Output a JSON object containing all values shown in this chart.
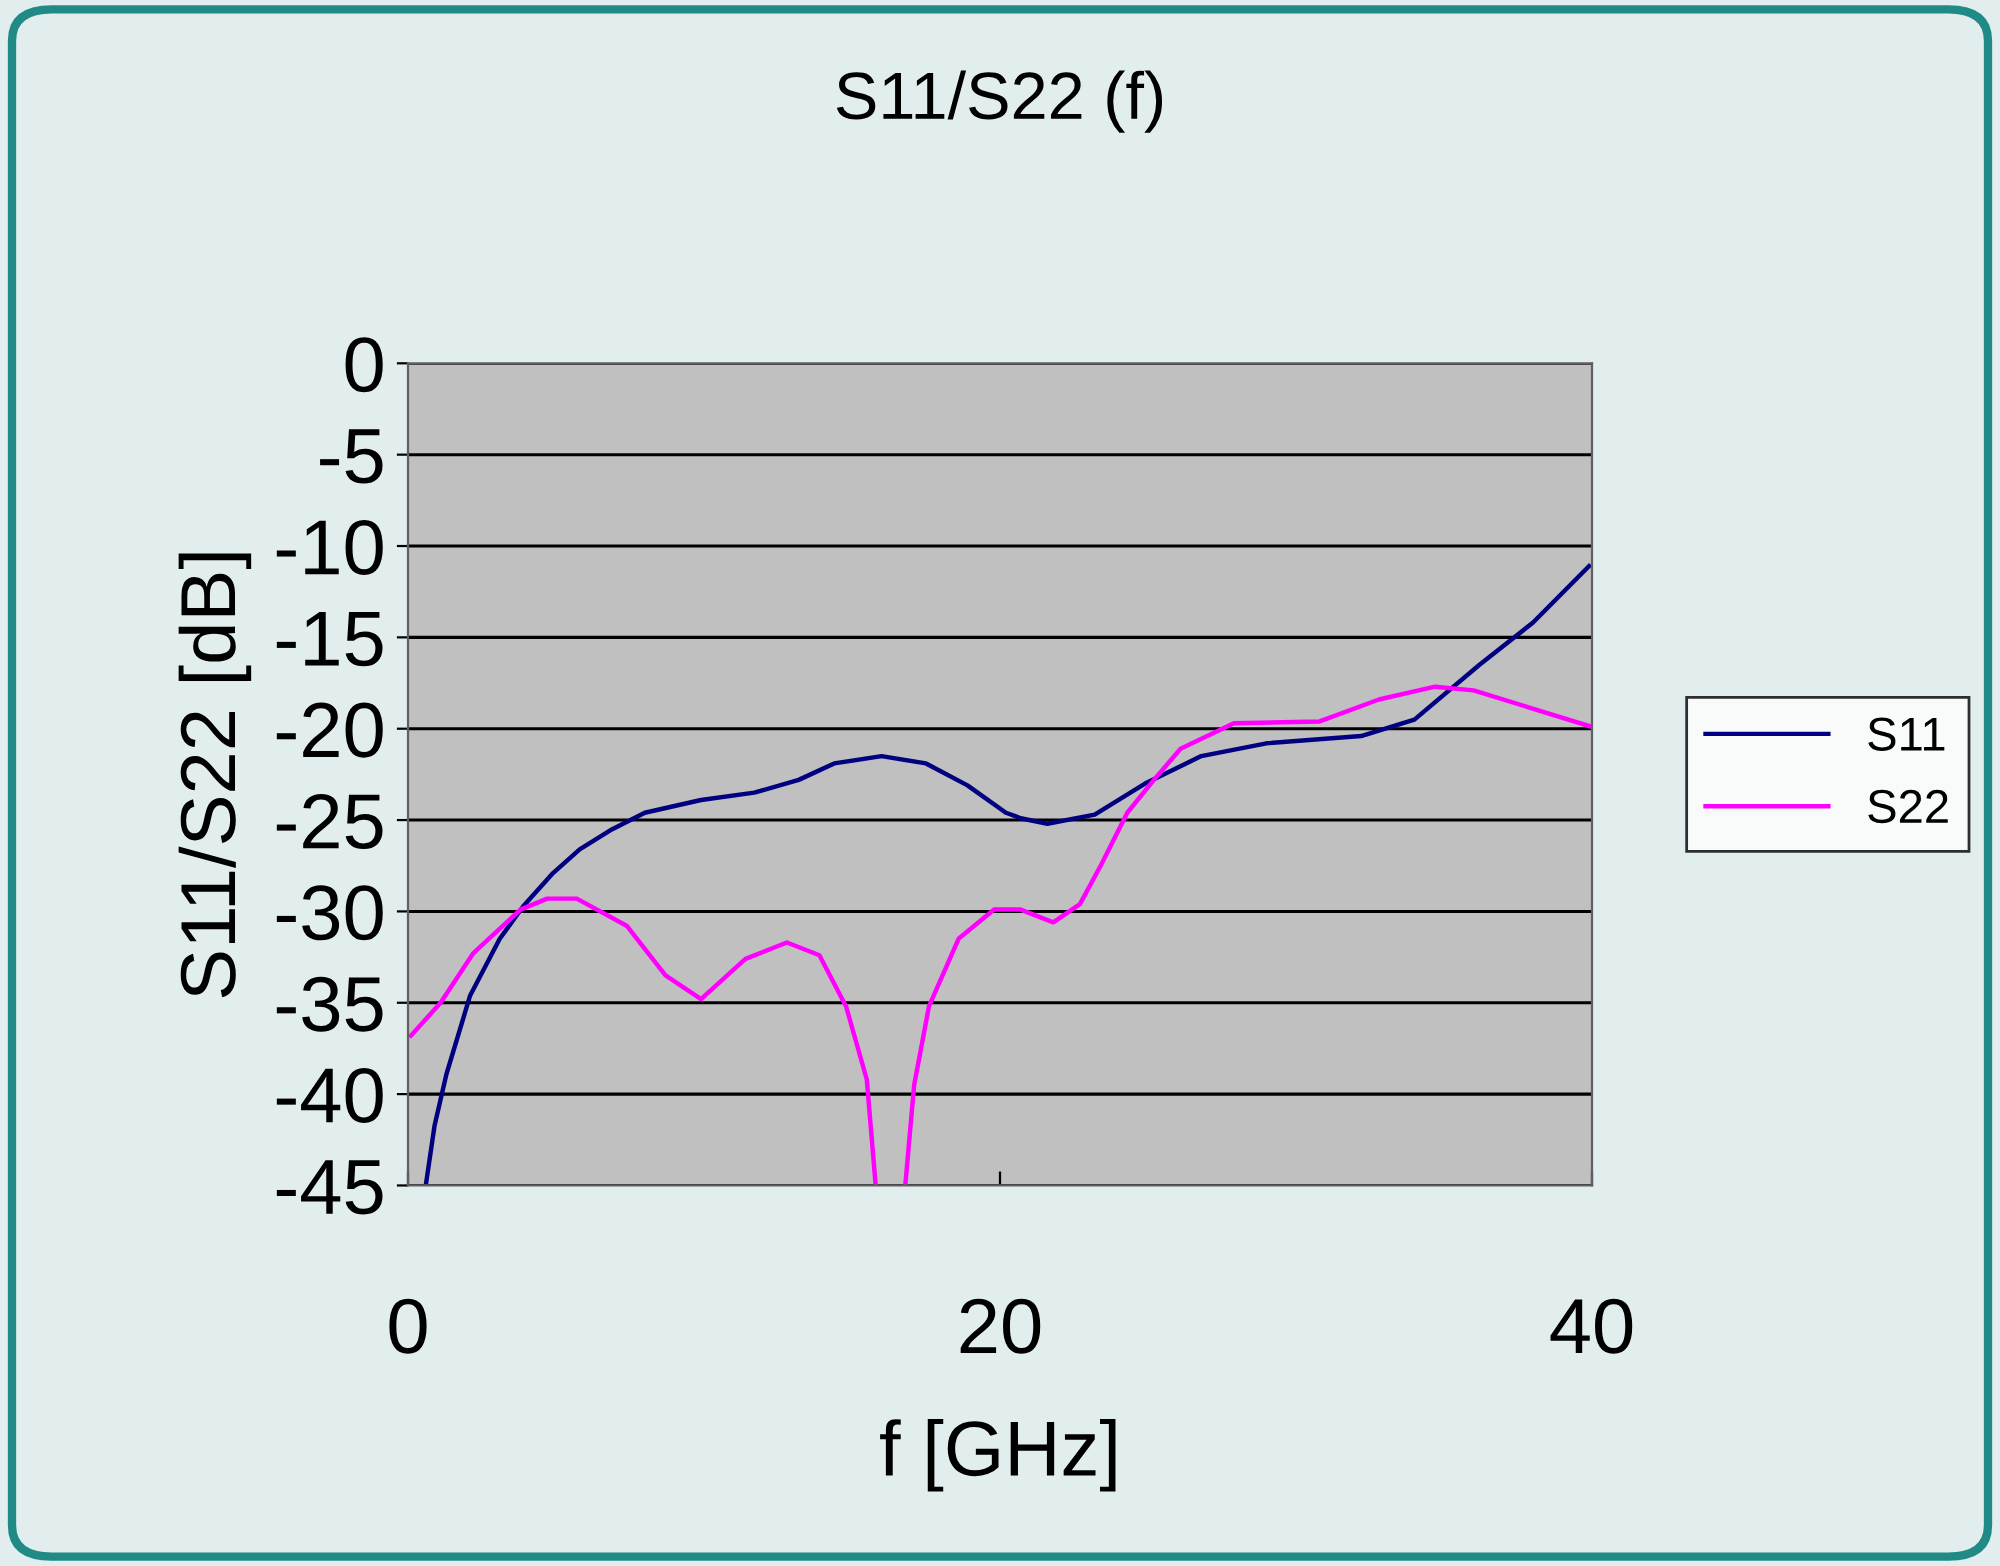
{
  "chart_data": {
    "type": "line",
    "title": "S11/S22 (f)",
    "xlabel": "f [GHz]",
    "ylabel": "S11/S22 [dB]",
    "xlim": [
      0,
      40
    ],
    "xticks": [
      0,
      20,
      40
    ],
    "ylim": [
      -45,
      0
    ],
    "yticks": [
      0,
      -5,
      -10,
      -15,
      -20,
      -25,
      -30,
      -35,
      -40,
      -45
    ],
    "grid": "y",
    "legend": "right",
    "marker": "none",
    "line_style": "solid",
    "series": [
      {
        "name": "S11",
        "color": "#000080",
        "x": [
          0.6,
          0.9,
          1.3,
          2.1,
          3.1,
          3.9,
          4.9,
          5.8,
          6.9,
          8.0,
          9.9,
          11.7,
          13.2,
          14.4,
          16.0,
          17.5,
          18.9,
          20.2,
          20.7,
          21.6,
          23.2,
          24.9,
          26.8,
          29.0,
          32.2,
          34.0,
          36.2,
          38.0,
          39.9
        ],
        "values": [
          -45,
          -41.7,
          -38.9,
          -34.6,
          -31.5,
          -29.7,
          -27.9,
          -26.6,
          -25.5,
          -24.6,
          -23.9,
          -23.5,
          -22.8,
          -21.9,
          -21.5,
          -21.9,
          -23.1,
          -24.6,
          -24.9,
          -25.2,
          -24.7,
          -23.0,
          -21.5,
          -20.8,
          -20.4,
          -19.5,
          -16.5,
          -14.2,
          -11.1
        ]
      },
      {
        "name": "S22",
        "color": "#ff00ff",
        "x": [
          0.1,
          1.1,
          2.2,
          3.8,
          4.7,
          5.7,
          7.4,
          8.7,
          9.9,
          11.4,
          12.8,
          13.9,
          14.8,
          15.5,
          15.8,
          16.3,
          16.8,
          17.1,
          17.6,
          18.6,
          19.8,
          20.7,
          21.8,
          22.7,
          23.4,
          24.3,
          25.2,
          26.1,
          27.9,
          30.8,
          32.8,
          34.7,
          36.0,
          37.8,
          40.0
        ],
        "values": [
          -36.8,
          -35.0,
          -32.3,
          -29.9,
          -29.3,
          -29.3,
          -30.8,
          -33.5,
          -34.8,
          -32.6,
          -31.7,
          -32.4,
          -35.2,
          -39.2,
          -45,
          null,
          -45,
          -39.5,
          -35.2,
          -31.5,
          -29.9,
          -29.9,
          -30.6,
          -29.6,
          -27.5,
          -24.6,
          -22.8,
          -21.1,
          -19.7,
          -19.6,
          -18.4,
          -17.7,
          -17.9,
          -18.8,
          -19.9
        ]
      }
    ]
  }
}
